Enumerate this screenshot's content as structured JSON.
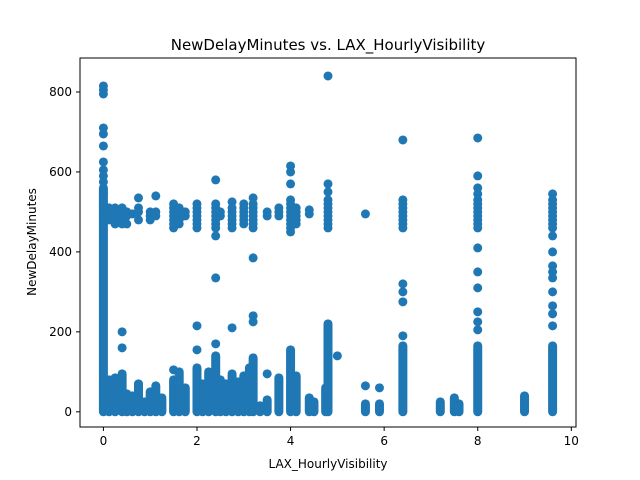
{
  "chart_data": {
    "type": "scatter",
    "title": "NewDelayMinutes vs. LAX_HourlyVisibility",
    "xlabel": "LAX_HourlyVisibility",
    "ylabel": "NewDelayMinutes",
    "xlim": [
      -0.5,
      10.1
    ],
    "ylim": [
      -38,
      885
    ],
    "xticks": [
      0,
      2,
      4,
      6,
      8,
      10
    ],
    "yticks": [
      0,
      200,
      400,
      600,
      800
    ],
    "marker_color": "#1f77b4",
    "grid": false,
    "legend": "none",
    "columns": [
      {
        "x": 0,
        "segments": [
          [
            0,
            560
          ]
        ],
        "points": [
          815,
          805,
          795,
          710,
          695,
          665,
          625,
          605,
          590,
          575,
          545,
          520
        ]
      },
      {
        "x": 0.12,
        "segments": [
          [
            0,
            80
          ]
        ],
        "points": [
          480,
          490,
          500,
          510
        ]
      },
      {
        "x": 0.25,
        "segments": [
          [
            0,
            85
          ]
        ],
        "points": [
          470,
          480,
          490,
          500,
          510
        ]
      },
      {
        "x": 0.4,
        "segments": [
          [
            0,
            95
          ]
        ],
        "points": [
          200,
          160,
          470,
          485,
          500,
          510
        ]
      },
      {
        "x": 0.5,
        "segments": [
          [
            0,
            45
          ]
        ],
        "points": [
          470,
          490,
          500
        ]
      },
      {
        "x": 0.62,
        "segments": [
          [
            0,
            40
          ]
        ],
        "points": [
          495
        ]
      },
      {
        "x": 0.75,
        "segments": [
          [
            0,
            70
          ]
        ],
        "points": [
          480,
          500,
          510,
          535
        ]
      },
      {
        "x": 0.88,
        "segments": [
          [
            0,
            25
          ]
        ],
        "points": []
      },
      {
        "x": 1.0,
        "segments": [
          [
            0,
            50
          ]
        ],
        "points": [
          480,
          490,
          500
        ]
      },
      {
        "x": 1.12,
        "segments": [
          [
            0,
            65
          ]
        ],
        "points": [
          490,
          500,
          540
        ]
      },
      {
        "x": 1.25,
        "segments": [
          [
            0,
            35
          ]
        ],
        "points": []
      },
      {
        "x": 1.5,
        "segments": [
          [
            0,
            80
          ]
        ],
        "points": [
          105,
          460,
          470,
          480,
          490,
          500,
          510,
          520
        ]
      },
      {
        "x": 1.62,
        "segments": [
          [
            0,
            100
          ]
        ],
        "points": [
          470,
          480,
          490,
          500,
          510
        ]
      },
      {
        "x": 1.75,
        "segments": [
          [
            0,
            60
          ]
        ],
        "points": [
          490,
          500
        ]
      },
      {
        "x": 2.0,
        "segments": [
          [
            0,
            110
          ]
        ],
        "points": [
          215,
          155,
          460,
          470,
          480,
          490,
          500,
          510,
          520
        ]
      },
      {
        "x": 2.12,
        "segments": [
          [
            0,
            70
          ]
        ],
        "points": []
      },
      {
        "x": 2.25,
        "segments": [
          [
            0,
            100
          ]
        ],
        "points": []
      },
      {
        "x": 2.4,
        "segments": [
          [
            0,
            140
          ]
        ],
        "points": [
          580,
          520,
          510,
          500,
          490,
          480,
          470,
          460,
          440,
          335,
          170
        ]
      },
      {
        "x": 2.5,
        "segments": [
          [
            0,
            80
          ]
        ],
        "points": [
          490,
          500
        ]
      },
      {
        "x": 2.62,
        "segments": [
          [
            0,
            70
          ]
        ],
        "points": []
      },
      {
        "x": 2.75,
        "segments": [
          [
            0,
            95
          ]
        ],
        "points": [
          460,
          470,
          480,
          490,
          500,
          510,
          525,
          210
        ]
      },
      {
        "x": 2.88,
        "segments": [
          [
            0,
            75
          ]
        ],
        "points": []
      },
      {
        "x": 3.0,
        "segments": [
          [
            0,
            90
          ]
        ],
        "points": [
          470,
          480,
          490,
          500,
          510,
          520
        ]
      },
      {
        "x": 3.12,
        "segments": [
          [
            0,
            110
          ]
        ],
        "points": []
      },
      {
        "x": 3.2,
        "segments": [
          [
            0,
            135
          ]
        ],
        "points": [
          535,
          520,
          510,
          500,
          490,
          480,
          470,
          460,
          385,
          240,
          225
        ]
      },
      {
        "x": 3.35,
        "segments": [
          [
            0,
            15
          ]
        ],
        "points": []
      },
      {
        "x": 3.5,
        "segments": [
          [
            0,
            30
          ]
        ],
        "points": [
          490,
          500,
          95
        ]
      },
      {
        "x": 3.75,
        "segments": [
          [
            0,
            85
          ]
        ],
        "points": [
          490,
          500,
          510
        ]
      },
      {
        "x": 4.0,
        "segments": [
          [
            0,
            155
          ]
        ],
        "points": [
          615,
          600,
          570,
          530,
          520,
          510,
          500,
          490,
          480,
          470,
          460,
          450
        ]
      },
      {
        "x": 4.12,
        "segments": [
          [
            0,
            90
          ]
        ],
        "points": [
          470,
          480,
          490,
          500,
          510
        ]
      },
      {
        "x": 4.4,
        "segments": [
          [
            0,
            35
          ]
        ],
        "points": [
          495,
          505
        ]
      },
      {
        "x": 4.5,
        "segments": [
          [
            0,
            25
          ]
        ],
        "points": []
      },
      {
        "x": 4.75,
        "segments": [
          [
            0,
            60
          ]
        ],
        "points": []
      },
      {
        "x": 4.8,
        "segments": [
          [
            0,
            220
          ]
        ],
        "points": [
          840,
          570,
          550,
          530,
          520,
          510,
          500,
          490,
          480,
          470,
          460
        ]
      },
      {
        "x": 5.0,
        "segments": [],
        "points": [
          140
        ]
      },
      {
        "x": 5.6,
        "segments": [
          [
            0,
            20
          ]
        ],
        "points": [
          65,
          495
        ]
      },
      {
        "x": 5.9,
        "segments": [
          [
            0,
            20
          ]
        ],
        "points": [
          60
        ]
      },
      {
        "x": 6.4,
        "segments": [
          [
            0,
            165
          ]
        ],
        "points": [
          680,
          530,
          520,
          510,
          500,
          490,
          480,
          470,
          460,
          320,
          300,
          275,
          190
        ]
      },
      {
        "x": 7.2,
        "segments": [
          [
            0,
            25
          ]
        ],
        "points": []
      },
      {
        "x": 7.5,
        "segments": [
          [
            0,
            35
          ]
        ],
        "points": []
      },
      {
        "x": 7.6,
        "segments": [
          [
            0,
            20
          ]
        ],
        "points": []
      },
      {
        "x": 8.0,
        "segments": [
          [
            0,
            165
          ]
        ],
        "points": [
          685,
          590,
          560,
          545,
          530,
          520,
          510,
          500,
          490,
          480,
          470,
          460,
          410,
          350,
          310,
          250,
          225,
          205
        ]
      },
      {
        "x": 9.0,
        "segments": [
          [
            0,
            40
          ]
        ],
        "points": []
      },
      {
        "x": 9.6,
        "segments": [
          [
            0,
            165
          ]
        ],
        "points": [
          545,
          530,
          520,
          510,
          500,
          490,
          480,
          470,
          460,
          440,
          400,
          365,
          350,
          335,
          300,
          265,
          245,
          215
        ]
      }
    ]
  }
}
